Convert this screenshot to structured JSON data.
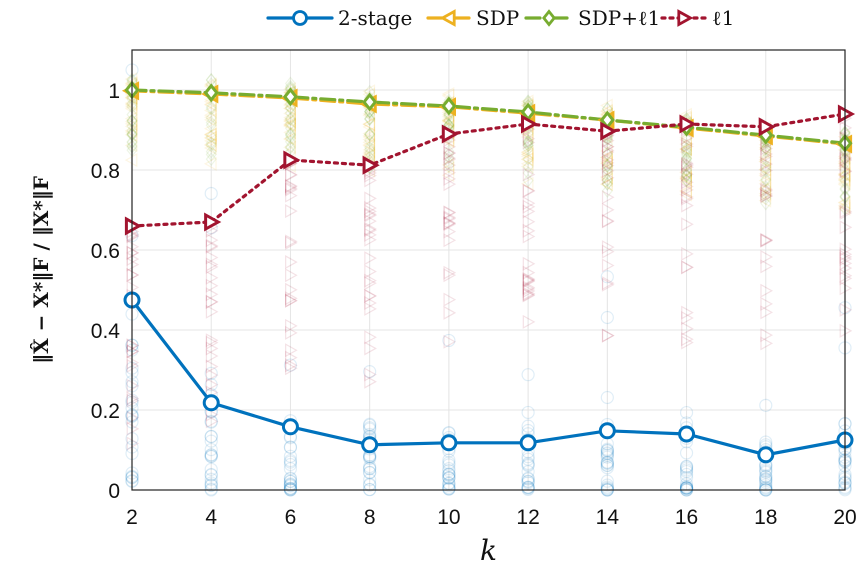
{
  "chart_data": {
    "type": "line",
    "x": [
      2,
      4,
      6,
      8,
      10,
      12,
      14,
      16,
      18,
      20
    ],
    "xlim": [
      2,
      20
    ],
    "ylim": [
      0,
      1.1
    ],
    "xticks": [
      "2",
      "4",
      "6",
      "8",
      "10",
      "12",
      "14",
      "16",
      "18",
      "20"
    ],
    "yticks": [
      "0",
      "0.2",
      "0.4",
      "0.6",
      "0.8",
      "1"
    ],
    "xlabel": "k",
    "ylabel": "‖X̂ − X*‖F / ‖X*‖F",
    "grid": true,
    "legend_position": "top-center",
    "series": [
      {
        "name": "2-stage",
        "color": "#0072BD",
        "marker": "circle",
        "linestyle": "solid",
        "values": [
          0.475,
          0.218,
          0.158,
          0.113,
          0.118,
          0.118,
          0.148,
          0.14,
          0.088,
          0.125
        ]
      },
      {
        "name": "SDP",
        "color": "#EDB120",
        "marker": "triangle-left",
        "linestyle": "dashdot",
        "values": [
          0.998,
          0.99,
          0.98,
          0.965,
          0.958,
          0.942,
          0.925,
          0.905,
          0.885,
          0.865
        ]
      },
      {
        "name": "SDP+ℓ1",
        "color": "#77AC30",
        "marker": "diamond",
        "linestyle": "dashdot",
        "values": [
          1.0,
          0.993,
          0.983,
          0.97,
          0.96,
          0.945,
          0.925,
          0.907,
          0.887,
          0.867
        ]
      },
      {
        "name": "ℓ1",
        "color": "#A2142F",
        "marker": "triangle-right",
        "linestyle": "dotted",
        "values": [
          0.66,
          0.67,
          0.825,
          0.812,
          0.89,
          0.915,
          0.897,
          0.915,
          0.908,
          0.94
        ]
      }
    ]
  }
}
